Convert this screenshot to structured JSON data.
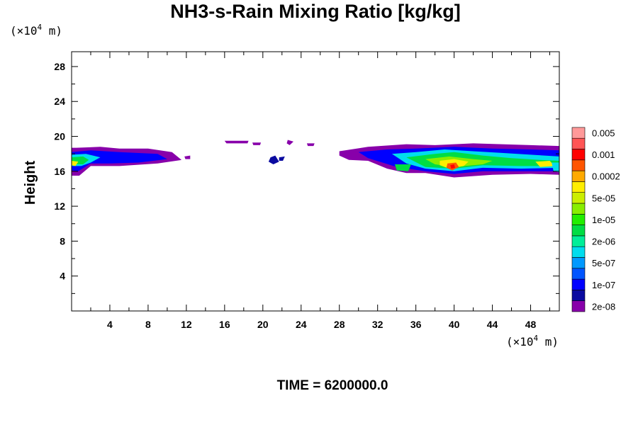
{
  "chart_data": {
    "type": "heatmap",
    "title": "NH3-s-Rain Mixing Ratio [kg/kg]",
    "xlabel": "",
    "ylabel": "Height",
    "x_unit_prefix": "(×10",
    "x_unit_exp": "4",
    "x_unit_suffix": " m)",
    "y_unit_prefix": "(×10",
    "y_unit_exp": "4",
    "y_unit_suffix": " m)",
    "xlim": [
      0,
      51
    ],
    "ylim": [
      0,
      29.7
    ],
    "x_ticks": [
      4,
      8,
      12,
      16,
      20,
      24,
      28,
      32,
      36,
      40,
      44,
      48
    ],
    "y_ticks": [
      4,
      8,
      12,
      16,
      20,
      24,
      28
    ],
    "footer": "TIME = 6200000.0",
    "colorbar": {
      "colors": [
        "#8800aa",
        "#0a0aa0",
        "#0000ff",
        "#0055ff",
        "#0099ff",
        "#00ddee",
        "#00ee99",
        "#00dd44",
        "#22ee00",
        "#88ee00",
        "#ccee00",
        "#ffee00",
        "#ffaa00",
        "#ff5500",
        "#ff0000",
        "#ff5555",
        "#ff9999"
      ],
      "labels": [
        "2e-08",
        "1e-07",
        "5e-07",
        "2e-06",
        "1e-05",
        "5e-05",
        "0.0002",
        "0.001",
        "0.005"
      ]
    },
    "regions": [
      {
        "level": 0,
        "points": [
          [
            0.5,
            18.7
          ],
          [
            3,
            18.8
          ],
          [
            5,
            18.6
          ],
          [
            8,
            18.6
          ],
          [
            10.5,
            18.2
          ],
          [
            11.5,
            17.3
          ],
          [
            9,
            16.9
          ],
          [
            5,
            16.6
          ],
          [
            2,
            16.6
          ],
          [
            0.8,
            15.5
          ],
          [
            0,
            15.5
          ],
          [
            0,
            18.7
          ]
        ]
      },
      {
        "level": 2,
        "points": [
          [
            0,
            18.2
          ],
          [
            2,
            18.4
          ],
          [
            5,
            18.2
          ],
          [
            9,
            18.0
          ],
          [
            10,
            17.4
          ],
          [
            7,
            17.0
          ],
          [
            4,
            16.9
          ],
          [
            2,
            16.9
          ],
          [
            0.7,
            16.0
          ],
          [
            0,
            16.1
          ]
        ]
      },
      {
        "level": 5,
        "points": [
          [
            0,
            17.9
          ],
          [
            1.5,
            18.0
          ],
          [
            3,
            17.6
          ],
          [
            2,
            17.0
          ],
          [
            1,
            16.6
          ],
          [
            0,
            16.6
          ]
        ]
      },
      {
        "level": 7,
        "points": [
          [
            0,
            17.6
          ],
          [
            1.2,
            17.7
          ],
          [
            1.8,
            17.3
          ],
          [
            1.2,
            16.8
          ],
          [
            0,
            16.8
          ]
        ]
      },
      {
        "level": 11,
        "points": [
          [
            0,
            17.2
          ],
          [
            0.7,
            17.1
          ],
          [
            0.4,
            16.6
          ],
          [
            0,
            16.7
          ]
        ]
      },
      {
        "level": 0,
        "points": [
          [
            11.8,
            17.7
          ],
          [
            12.4,
            17.8
          ],
          [
            12.4,
            17.4
          ],
          [
            11.9,
            17.4
          ]
        ]
      },
      {
        "level": 0,
        "points": [
          [
            16,
            19.5
          ],
          [
            18.5,
            19.5
          ],
          [
            18.4,
            19.2
          ],
          [
            16.2,
            19.2
          ]
        ]
      },
      {
        "level": 0,
        "points": [
          [
            18.9,
            19.3
          ],
          [
            19.8,
            19.3
          ],
          [
            19.7,
            19.0
          ],
          [
            19.0,
            19.0
          ]
        ]
      },
      {
        "level": 0,
        "points": [
          [
            22.6,
            19.6
          ],
          [
            23.2,
            19.4
          ],
          [
            22.8,
            19.0
          ],
          [
            22.5,
            19.2
          ]
        ]
      },
      {
        "level": 0,
        "points": [
          [
            24.6,
            19.2
          ],
          [
            25.4,
            19.2
          ],
          [
            25.3,
            18.9
          ],
          [
            24.7,
            18.9
          ]
        ]
      },
      {
        "level": 1,
        "points": [
          [
            20.8,
            17.6
          ],
          [
            21.3,
            17.8
          ],
          [
            21.7,
            17.1
          ],
          [
            21.1,
            16.8
          ],
          [
            20.6,
            17.1
          ]
        ]
      },
      {
        "level": 1,
        "points": [
          [
            21.7,
            17.6
          ],
          [
            22.3,
            17.7
          ],
          [
            22.1,
            17.2
          ],
          [
            21.7,
            17.2
          ]
        ]
      },
      {
        "level": 0,
        "points": [
          [
            28,
            18.3
          ],
          [
            31,
            18.8
          ],
          [
            35,
            19.1
          ],
          [
            38,
            19.0
          ],
          [
            42,
            19.2
          ],
          [
            45,
            19.1
          ],
          [
            48,
            19.0
          ],
          [
            51,
            18.9
          ],
          [
            51,
            15.6
          ],
          [
            48,
            15.7
          ],
          [
            44,
            15.6
          ],
          [
            40,
            15.3
          ],
          [
            37,
            15.8
          ],
          [
            35,
            15.8
          ],
          [
            33,
            16.3
          ],
          [
            31,
            17.2
          ],
          [
            29,
            17.3
          ],
          [
            28,
            17.8
          ]
        ]
      },
      {
        "level": 2,
        "points": [
          [
            30,
            18.2
          ],
          [
            33,
            18.5
          ],
          [
            36,
            18.6
          ],
          [
            40,
            18.8
          ],
          [
            44,
            18.6
          ],
          [
            48,
            18.5
          ],
          [
            51,
            18.4
          ],
          [
            51,
            16.0
          ],
          [
            47,
            16.0
          ],
          [
            43,
            16.0
          ],
          [
            40,
            15.7
          ],
          [
            37,
            16.0
          ],
          [
            34,
            16.5
          ],
          [
            31,
            17.5
          ]
        ]
      },
      {
        "level": 5,
        "points": [
          [
            33.5,
            18.0
          ],
          [
            36,
            18.2
          ],
          [
            39,
            18.5
          ],
          [
            42,
            18.3
          ],
          [
            45,
            18.1
          ],
          [
            48,
            17.9
          ],
          [
            51,
            17.7
          ],
          [
            51,
            16.4
          ],
          [
            47,
            16.3
          ],
          [
            43,
            16.4
          ],
          [
            40,
            16.0
          ],
          [
            37,
            16.3
          ],
          [
            35,
            16.9
          ]
        ]
      },
      {
        "level": 7,
        "points": [
          [
            35,
            17.6
          ],
          [
            38,
            18.0
          ],
          [
            40,
            18.2
          ],
          [
            43,
            17.8
          ],
          [
            46,
            17.5
          ],
          [
            49,
            17.3
          ],
          [
            51,
            17.2
          ],
          [
            51,
            16.6
          ],
          [
            47,
            16.6
          ],
          [
            43,
            16.7
          ],
          [
            40,
            16.3
          ],
          [
            37,
            16.5
          ]
        ]
      },
      {
        "level": 9,
        "points": [
          [
            37,
            17.4
          ],
          [
            39.5,
            17.7
          ],
          [
            42,
            17.4
          ],
          [
            44,
            17.2
          ],
          [
            43,
            16.8
          ],
          [
            40,
            16.5
          ],
          [
            38,
            16.8
          ]
        ]
      },
      {
        "level": 11,
        "points": [
          [
            38.5,
            17.2
          ],
          [
            40,
            17.4
          ],
          [
            41.5,
            17.1
          ],
          [
            41,
            16.6
          ],
          [
            39.5,
            16.3
          ],
          [
            38.5,
            16.7
          ]
        ]
      },
      {
        "level": 13,
        "points": [
          [
            39.3,
            16.9
          ],
          [
            40.2,
            17.0
          ],
          [
            40.5,
            16.5
          ],
          [
            39.8,
            16.1
          ],
          [
            39.2,
            16.4
          ]
        ]
      },
      {
        "level": 14,
        "points": [
          [
            39.6,
            16.7
          ],
          [
            40.0,
            16.8
          ],
          [
            40.1,
            16.4
          ],
          [
            39.7,
            16.3
          ]
        ]
      },
      {
        "level": 11,
        "points": [
          [
            48.5,
            17.1
          ],
          [
            50,
            17.2
          ],
          [
            50.5,
            16.6
          ],
          [
            49,
            16.5
          ]
        ]
      },
      {
        "level": 7,
        "points": [
          [
            33.8,
            16.8
          ],
          [
            35.5,
            16.8
          ],
          [
            35.2,
            16.0
          ],
          [
            34,
            16.1
          ]
        ]
      },
      {
        "level": 5,
        "points": [
          [
            50.2,
            17.0
          ],
          [
            51,
            17.0
          ],
          [
            51,
            15.9
          ],
          [
            50.4,
            16.0
          ]
        ]
      }
    ]
  }
}
